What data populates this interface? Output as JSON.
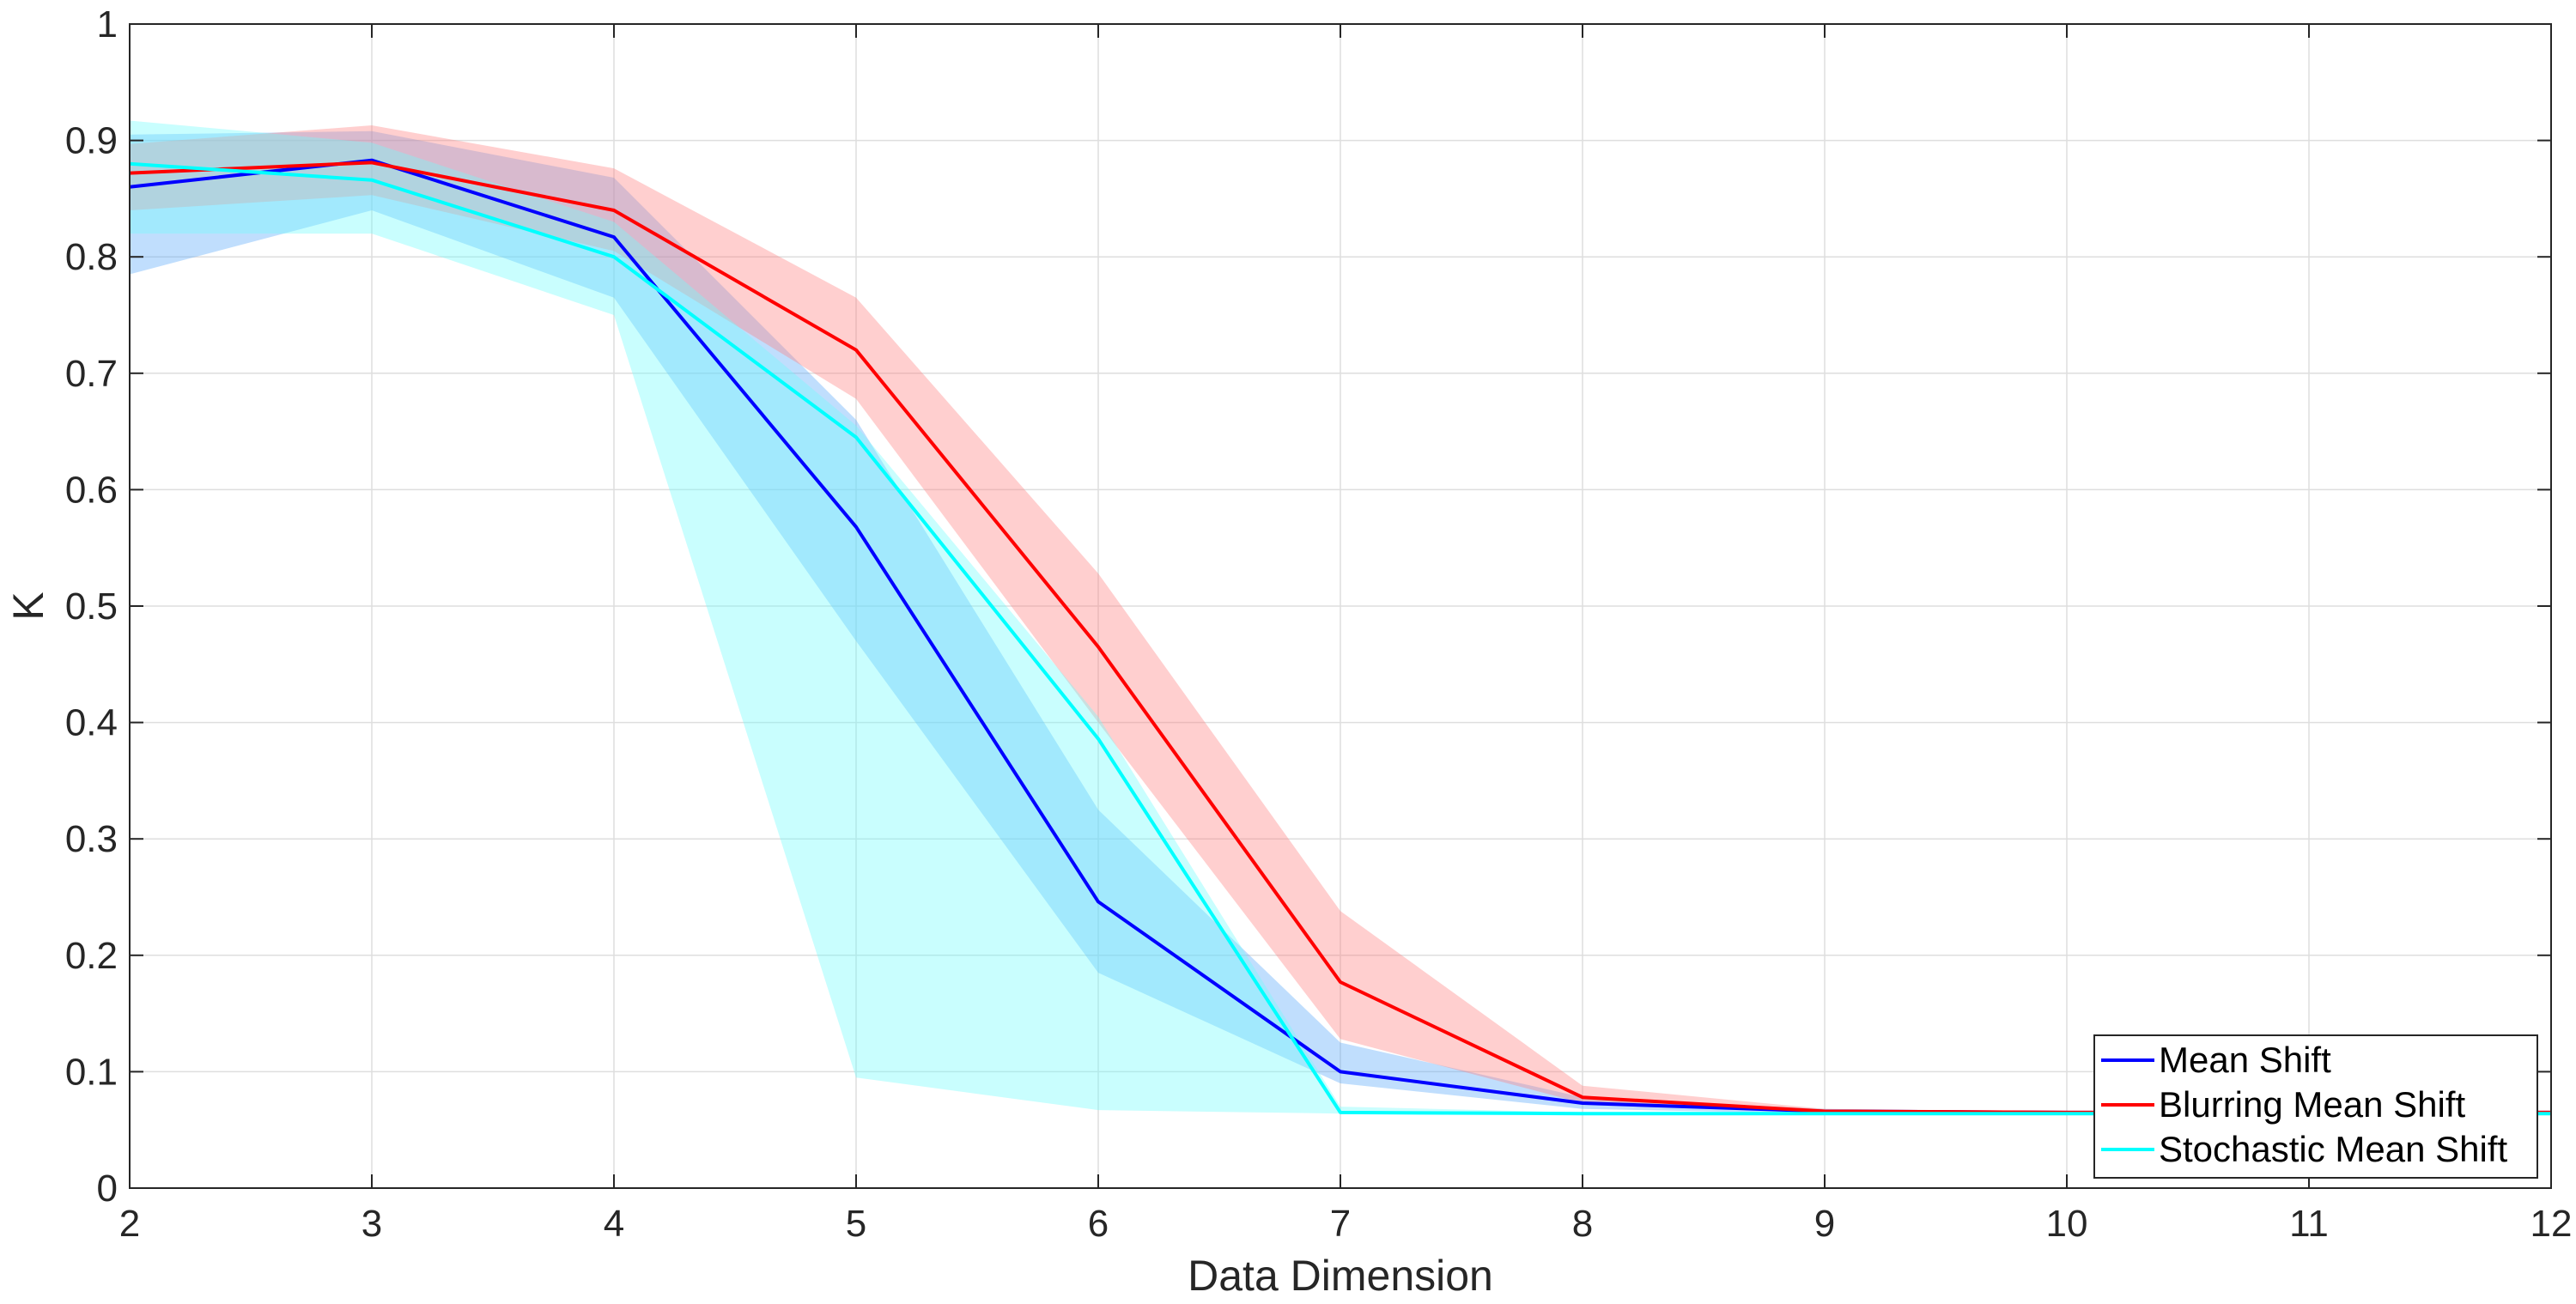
{
  "chart_data": {
    "type": "line",
    "title": "",
    "xlabel": "Data Dimension",
    "ylabel": "K",
    "xlim": [
      2,
      12
    ],
    "ylim": [
      0,
      1
    ],
    "grid": true,
    "legend_position": "bottom-right",
    "x_ticks": [
      "2",
      "3",
      "4",
      "5",
      "6",
      "7",
      "8",
      "9",
      "10",
      "11",
      "12"
    ],
    "y_ticks": [
      "0",
      "0.1",
      "0.2",
      "0.3",
      "0.4",
      "0.5",
      "0.6",
      "0.7",
      "0.8",
      "0.9",
      "1"
    ],
    "x": [
      2,
      3,
      4,
      5,
      6,
      7,
      8,
      9,
      10,
      11,
      12
    ],
    "series": [
      {
        "name": "Mean Shift",
        "color": "#0000ff",
        "band_color": "#5aa9fa",
        "values": [
          0.86,
          0.883,
          0.817,
          0.568,
          0.246,
          0.1,
          0.073,
          0.066,
          0.065,
          0.065,
          0.065
        ],
        "upper": [
          0.905,
          0.908,
          0.868,
          0.66,
          0.325,
          0.125,
          0.078,
          0.068,
          0.066,
          0.065,
          0.065
        ],
        "lower": [
          0.785,
          0.84,
          0.765,
          0.47,
          0.185,
          0.09,
          0.068,
          0.064,
          0.064,
          0.064,
          0.064
        ]
      },
      {
        "name": "Blurring Mean Shift",
        "color": "#ff0000",
        "band_color": "#ff8080",
        "values": [
          0.872,
          0.881,
          0.84,
          0.72,
          0.465,
          0.177,
          0.078,
          0.066,
          0.065,
          0.065,
          0.065
        ],
        "upper": [
          0.897,
          0.913,
          0.876,
          0.765,
          0.528,
          0.238,
          0.088,
          0.068,
          0.066,
          0.065,
          0.065
        ],
        "lower": [
          0.84,
          0.853,
          0.805,
          0.678,
          0.4,
          0.128,
          0.073,
          0.064,
          0.064,
          0.064,
          0.064
        ]
      },
      {
        "name": "Stochastic Mean Shift",
        "color": "#00ffff",
        "band_color": "#70fdfd",
        "values": [
          0.88,
          0.866,
          0.8,
          0.645,
          0.386,
          0.065,
          0.064,
          0.064,
          0.064,
          0.064,
          0.064
        ],
        "upper": [
          0.917,
          0.898,
          0.83,
          0.655,
          0.405,
          0.07,
          0.065,
          0.065,
          0.065,
          0.065,
          0.065
        ],
        "lower": [
          0.82,
          0.82,
          0.75,
          0.095,
          0.067,
          0.064,
          0.063,
          0.063,
          0.063,
          0.063,
          0.063
        ]
      }
    ]
  }
}
